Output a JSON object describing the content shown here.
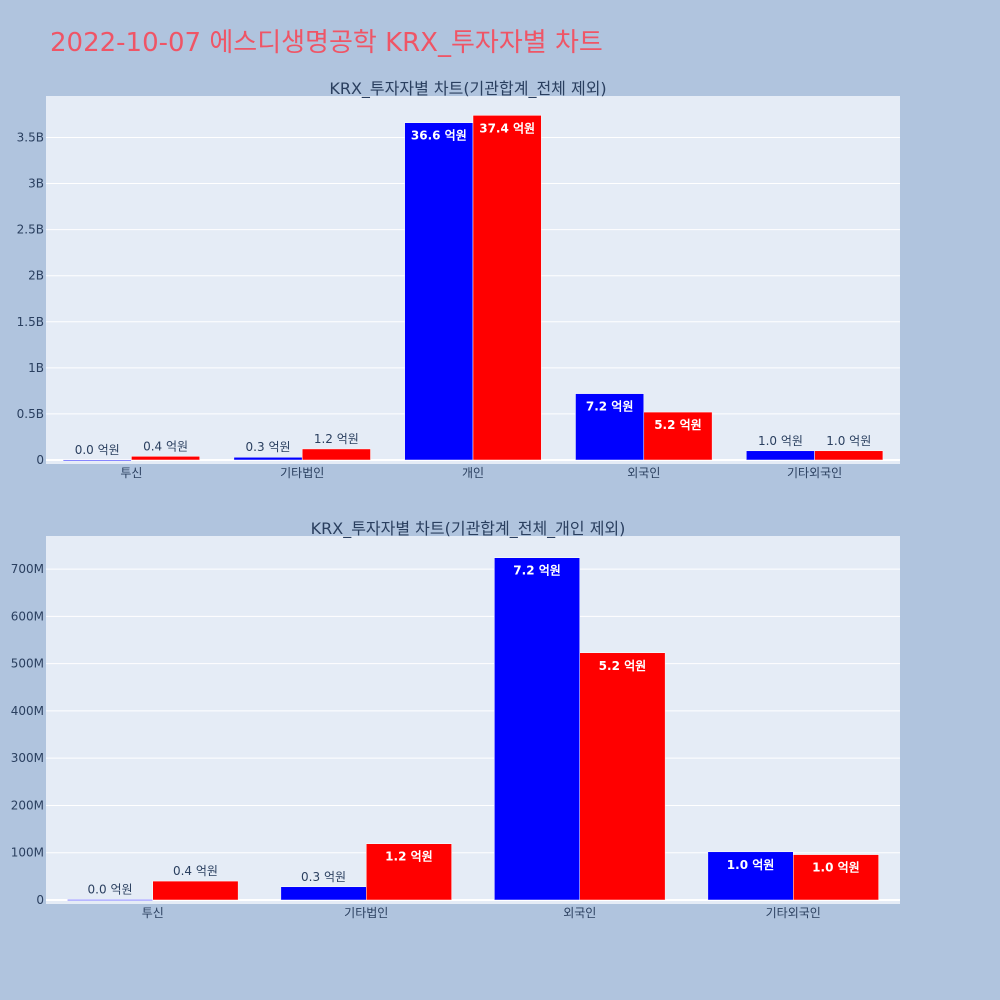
{
  "page": {
    "title": "2022-10-07 에스디생명공학 KRX_투자자별 차트"
  },
  "colors": {
    "background": "#b0c4de",
    "plot_bg": "#e5ecf6",
    "buy": "#0000ff",
    "sell": "#ff0000",
    "title": "#ef5566"
  },
  "chart_data": [
    {
      "type": "bar",
      "title": "KRX_투자자별 차트(기관합계_전체 제외)",
      "categories": [
        "투신",
        "기타법인",
        "개인",
        "외국인",
        "기타외국인"
      ],
      "ylim": [
        0,
        3950000000
      ],
      "yticks": [
        0,
        500000000,
        1000000000,
        1500000000,
        2000000000,
        2500000000,
        3000000000,
        3500000000
      ],
      "ytick_labels": [
        "0",
        "0.5B",
        "1B",
        "1.5B",
        "2B",
        "2.5B",
        "3B",
        "3.5B"
      ],
      "grid": true,
      "series": [
        {
          "color": "#0000ff",
          "values": [
            1000000,
            30000000,
            3660000000,
            720000000,
            100000000
          ],
          "labels": [
            "0.0 억원",
            "0.3 억원",
            "36.6 억원",
            "7.2 억원",
            "1.0 억원"
          ]
        },
        {
          "color": "#ff0000",
          "values": [
            40000000,
            120000000,
            3740000000,
            520000000,
            100000000
          ],
          "labels": [
            "0.4 억원",
            "1.2 억원",
            "37.4 억원",
            "5.2 억원",
            "1.0 억원"
          ]
        }
      ]
    },
    {
      "type": "bar",
      "title": "KRX_투자자별 차트(기관합계_전체_개인 제외)",
      "categories": [
        "투신",
        "기타법인",
        "외국인",
        "기타외국인"
      ],
      "ylim": [
        0,
        770000000
      ],
      "yticks": [
        0,
        100000000,
        200000000,
        300000000,
        400000000,
        500000000,
        600000000,
        700000000
      ],
      "ytick_labels": [
        "0",
        "100M",
        "200M",
        "300M",
        "400M",
        "500M",
        "600M",
        "700M"
      ],
      "grid": true,
      "series": [
        {
          "color": "#0000ff",
          "values": [
            1000000,
            28000000,
            724000000,
            102000000
          ],
          "labels": [
            "0.0 억원",
            "0.3 억원",
            "7.2 억원",
            "1.0 억원"
          ]
        },
        {
          "color": "#ff0000",
          "values": [
            40000000,
            119000000,
            523000000,
            96000000
          ],
          "labels": [
            "0.4 억원",
            "1.2 억원",
            "5.2 억원",
            "1.0 억원"
          ]
        }
      ]
    }
  ]
}
